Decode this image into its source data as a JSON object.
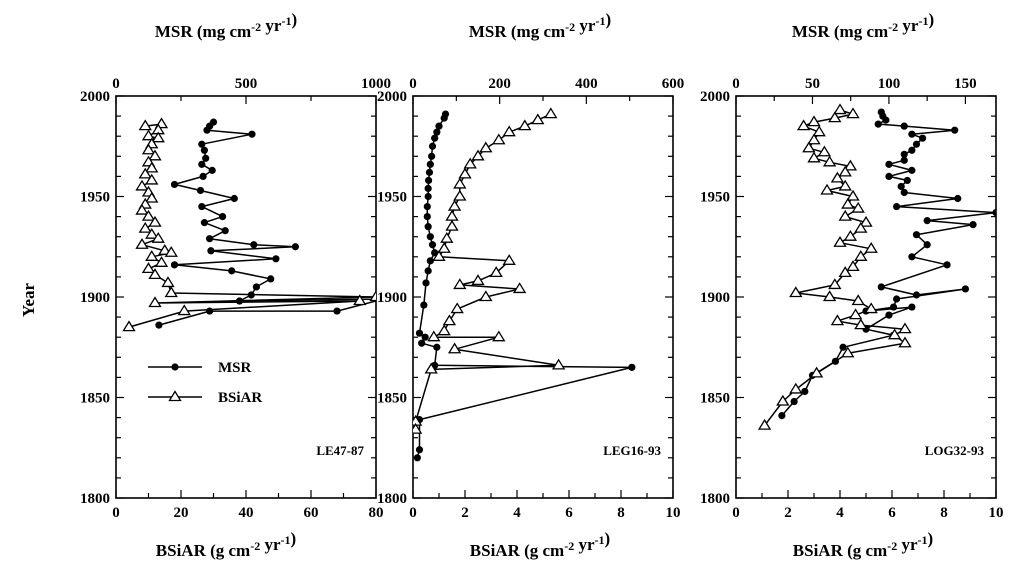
{
  "figure": {
    "ylabel": "Year",
    "top_axis_label": "MSR (mg cm",
    "top_axis_unit_exp": "-2",
    "top_axis_unit_mid": " yr",
    "top_axis_unit_exp2": "-1",
    "top_axis_label_end": ")",
    "bottom_axis_label": "BSiAR (g cm",
    "bottom_axis_unit_exp": "-2",
    "bottom_axis_unit_mid": " yr",
    "bottom_axis_unit_exp2": "-1",
    "bottom_axis_label_end": ")",
    "legend": [
      {
        "label": "MSR",
        "marker": "filled-circle"
      },
      {
        "label": "BSiAR",
        "marker": "open-triangle"
      }
    ]
  },
  "chart_data": [
    {
      "type": "line",
      "panel_label": "LE47-87",
      "ylim": [
        1800,
        2000
      ],
      "yticks": [
        1800,
        1850,
        1900,
        1950,
        2000
      ],
      "top_axis": {
        "range": [
          0,
          1000
        ],
        "ticks": [
          0,
          500,
          1000
        ]
      },
      "bottom_axis": {
        "range": [
          0,
          80
        ],
        "ticks": [
          0,
          20,
          40,
          60,
          80
        ]
      },
      "series": [
        {
          "name": "MSR",
          "axis": "top",
          "points": [
            [
              375,
              1987
            ],
            [
              360,
              1985
            ],
            [
              350,
              1983
            ],
            [
              523,
              1981
            ],
            [
              330,
              1976
            ],
            [
              340,
              1973
            ],
            [
              345,
              1969
            ],
            [
              330,
              1966
            ],
            [
              370,
              1963
            ],
            [
              335,
              1960
            ],
            [
              225,
              1956
            ],
            [
              325,
              1953
            ],
            [
              455,
              1949
            ],
            [
              330,
              1945
            ],
            [
              410,
              1940
            ],
            [
              340,
              1937
            ],
            [
              420,
              1933
            ],
            [
              360,
              1929
            ],
            [
              530,
              1926
            ],
            [
              690,
              1925
            ],
            [
              365,
              1923
            ],
            [
              615,
              1919
            ],
            [
              225,
              1916
            ],
            [
              445,
              1913
            ],
            [
              595,
              1909
            ],
            [
              540,
              1905
            ],
            [
              520,
              1901
            ],
            [
              475,
              1898
            ],
            [
              1030,
              1899
            ],
            [
              850,
              1893
            ],
            [
              360,
              1893
            ],
            [
              165,
              1886
            ]
          ]
        },
        {
          "name": "BSiAR",
          "axis": "bottom",
          "points": [
            [
              9,
              1985
            ],
            [
              14,
              1986
            ],
            [
              13,
              1983
            ],
            [
              10,
              1980
            ],
            [
              13,
              1979
            ],
            [
              11,
              1976
            ],
            [
              10,
              1973
            ],
            [
              12,
              1970
            ],
            [
              10,
              1967
            ],
            [
              11,
              1964
            ],
            [
              9,
              1961
            ],
            [
              11,
              1958
            ],
            [
              8,
              1955
            ],
            [
              10,
              1952
            ],
            [
              11,
              1949
            ],
            [
              9,
              1946
            ],
            [
              8,
              1943
            ],
            [
              10,
              1940
            ],
            [
              12,
              1937
            ],
            [
              9,
              1934
            ],
            [
              11,
              1931
            ],
            [
              13,
              1929
            ],
            [
              8,
              1926
            ],
            [
              15,
              1923
            ],
            [
              17,
              1922
            ],
            [
              11,
              1920
            ],
            [
              14,
              1917
            ],
            [
              10,
              1914
            ],
            [
              12,
              1911
            ],
            [
              16,
              1907
            ],
            [
              17,
              1902
            ],
            [
              80,
              1900
            ],
            [
              12,
              1897
            ],
            [
              75,
              1898
            ],
            [
              21,
              1893
            ],
            [
              4,
              1885
            ]
          ]
        }
      ]
    },
    {
      "type": "line",
      "panel_label": "LEG16-93",
      "ylim": [
        1800,
        2000
      ],
      "yticks": [
        1800,
        1850,
        1900,
        1950,
        2000
      ],
      "top_axis": {
        "range": [
          0,
          600
        ],
        "ticks": [
          0,
          200,
          400,
          600
        ]
      },
      "bottom_axis": {
        "range": [
          0,
          10
        ],
        "ticks": [
          0,
          2,
          4,
          6,
          8,
          10
        ]
      },
      "series": [
        {
          "name": "MSR",
          "axis": "top",
          "points": [
            [
              75,
              1991
            ],
            [
              72,
              1989
            ],
            [
              60,
              1985
            ],
            [
              55,
              1982
            ],
            [
              50,
              1979
            ],
            [
              45,
              1975
            ],
            [
              43,
              1970
            ],
            [
              40,
              1966
            ],
            [
              38,
              1962
            ],
            [
              36,
              1958
            ],
            [
              35,
              1954
            ],
            [
              35,
              1950
            ],
            [
              33,
              1945
            ],
            [
              33,
              1940
            ],
            [
              35,
              1935
            ],
            [
              40,
              1930
            ],
            [
              45,
              1926
            ],
            [
              50,
              1922
            ],
            [
              40,
              1918
            ],
            [
              35,
              1913
            ],
            [
              30,
              1907
            ],
            [
              25,
              1896
            ],
            [
              15,
              1882
            ],
            [
              28,
              1880
            ],
            [
              20,
              1877
            ],
            [
              55,
              1875
            ],
            [
              50,
              1866
            ],
            [
              505,
              1865
            ],
            [
              15,
              1839
            ],
            [
              15,
              1824
            ],
            [
              10,
              1820
            ]
          ]
        },
        {
          "name": "BSiAR",
          "axis": "bottom",
          "points": [
            [
              5.3,
              1991
            ],
            [
              4.8,
              1988
            ],
            [
              4.3,
              1985
            ],
            [
              3.7,
              1982
            ],
            [
              3.3,
              1978
            ],
            [
              2.8,
              1974
            ],
            [
              2.5,
              1970
            ],
            [
              2.2,
              1966
            ],
            [
              2.0,
              1961
            ],
            [
              1.8,
              1956
            ],
            [
              1.8,
              1950
            ],
            [
              1.6,
              1945
            ],
            [
              1.5,
              1940
            ],
            [
              1.5,
              1935
            ],
            [
              1.3,
              1929
            ],
            [
              1.2,
              1924
            ],
            [
              1.0,
              1920
            ],
            [
              3.7,
              1918
            ],
            [
              3.2,
              1912
            ],
            [
              2.5,
              1908
            ],
            [
              1.8,
              1906
            ],
            [
              4.1,
              1904
            ],
            [
              2.8,
              1900
            ],
            [
              1.7,
              1894
            ],
            [
              1.4,
              1888
            ],
            [
              1.2,
              1883
            ],
            [
              0.8,
              1880
            ],
            [
              3.3,
              1880
            ],
            [
              1.6,
              1874
            ],
            [
              5.6,
              1866
            ],
            [
              0.7,
              1864
            ],
            [
              0.1,
              1838
            ],
            [
              0.1,
              1834
            ]
          ]
        }
      ]
    },
    {
      "type": "line",
      "panel_label": "LOG32-93",
      "ylim": [
        1800,
        2000
      ],
      "yticks": [
        1800,
        1850,
        1900,
        1950,
        2000
      ],
      "top_axis": {
        "range": [
          0,
          170
        ],
        "ticks": [
          0,
          50,
          100,
          150
        ]
      },
      "bottom_axis": {
        "range": [
          0,
          10
        ],
        "ticks": [
          0,
          2,
          4,
          6,
          8,
          10
        ]
      },
      "series": [
        {
          "name": "MSR",
          "axis": "top",
          "points": [
            [
              95,
              1992
            ],
            [
              96,
              1990
            ],
            [
              98,
              1988
            ],
            [
              93,
              1986
            ],
            [
              110,
              1985
            ],
            [
              143,
              1983
            ],
            [
              115,
              1981
            ],
            [
              122,
              1979
            ],
            [
              118,
              1976
            ],
            [
              115,
              1973
            ],
            [
              110,
              1971
            ],
            [
              110,
              1968
            ],
            [
              100,
              1966
            ],
            [
              115,
              1963
            ],
            [
              100,
              1960
            ],
            [
              112,
              1958
            ],
            [
              108,
              1955
            ],
            [
              110,
              1952
            ],
            [
              145,
              1949
            ],
            [
              105,
              1945
            ],
            [
              170,
              1942
            ],
            [
              125,
              1938
            ],
            [
              155,
              1936
            ],
            [
              118,
              1931
            ],
            [
              125,
              1926
            ],
            [
              115,
              1920
            ],
            [
              138,
              1916
            ],
            [
              95,
              1905
            ],
            [
              118,
              1901
            ],
            [
              150,
              1904
            ],
            [
              105,
              1899
            ],
            [
              103,
              1895
            ],
            [
              85,
              1893
            ],
            [
              115,
              1895
            ],
            [
              100,
              1891
            ],
            [
              85,
              1884
            ],
            [
              103,
              1881
            ],
            [
              70,
              1875
            ],
            [
              65,
              1868
            ],
            [
              50,
              1861
            ],
            [
              45,
              1853
            ],
            [
              38,
              1848
            ],
            [
              30,
              1841
            ]
          ]
        },
        {
          "name": "BSiAR",
          "axis": "bottom",
          "points": [
            [
              4.0,
              1993
            ],
            [
              4.5,
              1991
            ],
            [
              3.8,
              1989
            ],
            [
              3.0,
              1987
            ],
            [
              2.6,
              1985
            ],
            [
              3.2,
              1982
            ],
            [
              3.0,
              1978
            ],
            [
              2.8,
              1974
            ],
            [
              3.4,
              1972
            ],
            [
              3.0,
              1969
            ],
            [
              3.6,
              1967
            ],
            [
              4.4,
              1965
            ],
            [
              4.2,
              1962
            ],
            [
              3.9,
              1959
            ],
            [
              4.2,
              1955
            ],
            [
              3.5,
              1953
            ],
            [
              4.5,
              1950
            ],
            [
              4.3,
              1946
            ],
            [
              4.7,
              1944
            ],
            [
              4.2,
              1940
            ],
            [
              5.0,
              1937
            ],
            [
              4.8,
              1934
            ],
            [
              4.4,
              1930
            ],
            [
              4.0,
              1927
            ],
            [
              5.2,
              1924
            ],
            [
              4.8,
              1920
            ],
            [
              4.5,
              1915
            ],
            [
              4.2,
              1912
            ],
            [
              3.8,
              1906
            ],
            [
              2.3,
              1902
            ],
            [
              3.6,
              1900
            ],
            [
              4.7,
              1898
            ],
            [
              5.2,
              1894
            ],
            [
              4.6,
              1891
            ],
            [
              3.9,
              1888
            ],
            [
              4.8,
              1886
            ],
            [
              6.5,
              1884
            ],
            [
              6.1,
              1881
            ],
            [
              6.5,
              1877
            ],
            [
              4.3,
              1872
            ],
            [
              3.1,
              1862
            ],
            [
              2.3,
              1854
            ],
            [
              1.8,
              1848
            ],
            [
              1.1,
              1836
            ]
          ]
        }
      ]
    }
  ]
}
